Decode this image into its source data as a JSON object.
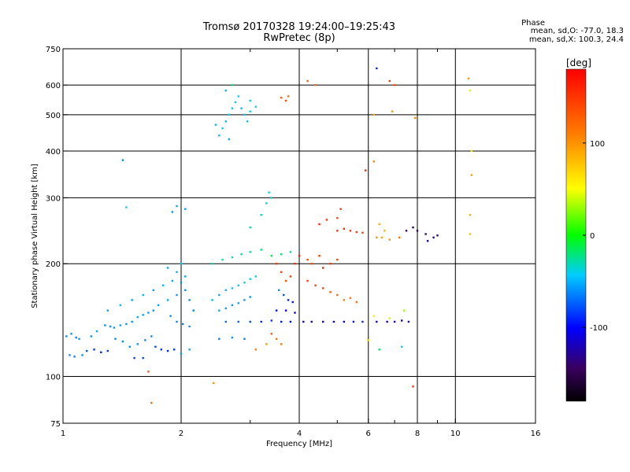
{
  "header": {
    "title_line1": "Tromsø 20170328 19:24:00–19:25:43",
    "title_line2": "RwPretec (8p)",
    "phase_title": "Phase",
    "phase_stat1": "mean, sd,O: -77.0, 18.3",
    "phase_stat2": "mean, sd,X: 100.3, 24.4"
  },
  "colorbar": {
    "unit_label": "[deg]",
    "range": [
      -180,
      180
    ],
    "ticks": [
      {
        "value": 100,
        "label": "100"
      },
      {
        "value": 0,
        "label": "0"
      },
      {
        "value": -100,
        "label": "-100"
      }
    ]
  },
  "chart_data": {
    "type": "scatter",
    "title": "Tromsø 20170328 19:24:00–19:25:43",
    "subtitle": "RwPretec (8p)",
    "xlabel": "Frequency [MHz]",
    "ylabel": "Stationary phase Virtual Height [km]",
    "xscale": "log",
    "yscale": "log",
    "xlim": [
      1,
      16
    ],
    "ylim": [
      75,
      750
    ],
    "grid": true,
    "xticks": [
      {
        "value": 1,
        "label": "1"
      },
      {
        "value": 2,
        "label": "2"
      },
      {
        "value": 4,
        "label": "4"
      },
      {
        "value": 6,
        "label": "6"
      },
      {
        "value": 8,
        "label": "8"
      },
      {
        "value": 10,
        "label": "10"
      },
      {
        "value": 16,
        "label": "16"
      }
    ],
    "xminor": [
      3,
      5,
      7,
      9
    ],
    "yticks": [
      {
        "value": 75,
        "label": "75"
      },
      {
        "value": 100,
        "label": "100"
      },
      {
        "value": 200,
        "label": "200"
      },
      {
        "value": 300,
        "label": "300"
      },
      {
        "value": 400,
        "label": "400"
      },
      {
        "value": 500,
        "label": "500"
      },
      {
        "value": 600,
        "label": "600"
      },
      {
        "value": 750,
        "label": "750"
      }
    ],
    "points": [
      [
        1.02,
        128,
        -60
      ],
      [
        1.05,
        130,
        -60
      ],
      [
        1.08,
        127,
        -65
      ],
      [
        1.1,
        126,
        -58
      ],
      [
        1.04,
        114,
        -62
      ],
      [
        1.07,
        113,
        -65
      ],
      [
        1.12,
        114,
        -60
      ],
      [
        1.15,
        117,
        -75
      ],
      [
        1.2,
        118,
        -85
      ],
      [
        1.25,
        116,
        -90
      ],
      [
        1.3,
        117,
        -85
      ],
      [
        1.18,
        128,
        -60
      ],
      [
        1.22,
        132,
        -55
      ],
      [
        1.28,
        137,
        -60
      ],
      [
        1.32,
        136,
        -62
      ],
      [
        1.35,
        135,
        -58
      ],
      [
        1.4,
        137,
        -55
      ],
      [
        1.45,
        138,
        -60
      ],
      [
        1.5,
        140,
        -60
      ],
      [
        1.55,
        144,
        -55
      ],
      [
        1.6,
        146,
        -55
      ],
      [
        1.65,
        148,
        -58
      ],
      [
        1.7,
        150,
        -60
      ],
      [
        1.36,
        126,
        -62
      ],
      [
        1.42,
        124,
        -65
      ],
      [
        1.48,
        120,
        -60
      ],
      [
        1.55,
        122,
        -58
      ],
      [
        1.62,
        125,
        -62
      ],
      [
        1.68,
        128,
        -60
      ],
      [
        1.72,
        120,
        -80
      ],
      [
        1.78,
        118,
        -85
      ],
      [
        1.85,
        117,
        -90
      ],
      [
        1.92,
        118,
        -85
      ],
      [
        1.3,
        150,
        -55
      ],
      [
        1.4,
        155,
        -50
      ],
      [
        1.5,
        160,
        -55
      ],
      [
        1.6,
        165,
        -52
      ],
      [
        1.7,
        170,
        -55
      ],
      [
        1.8,
        175,
        -50
      ],
      [
        1.9,
        180,
        -55
      ],
      [
        2.0,
        178,
        -60
      ],
      [
        1.75,
        155,
        -58
      ],
      [
        1.85,
        160,
        -55
      ],
      [
        1.95,
        165,
        -58
      ],
      [
        2.05,
        170,
        -60
      ],
      [
        2.1,
        160,
        -62
      ],
      [
        2.15,
        150,
        -65
      ],
      [
        1.88,
        145,
        -60
      ],
      [
        1.95,
        140,
        -62
      ],
      [
        2.02,
        138,
        -65
      ],
      [
        2.1,
        136,
        -60
      ],
      [
        1.9,
        275,
        -60
      ],
      [
        1.95,
        285,
        -55
      ],
      [
        2.05,
        280,
        -58
      ],
      [
        1.45,
        283,
        -45
      ],
      [
        1.42,
        378,
        -65
      ],
      [
        1.85,
        195,
        -55
      ],
      [
        1.95,
        190,
        -50
      ],
      [
        2.05,
        185,
        -55
      ],
      [
        2.0,
        200,
        -45
      ],
      [
        2.4,
        160,
        -50
      ],
      [
        2.5,
        165,
        -55
      ],
      [
        2.6,
        170,
        -50
      ],
      [
        2.7,
        172,
        -48
      ],
      [
        2.8,
        175,
        -45
      ],
      [
        2.9,
        178,
        -40
      ],
      [
        3.0,
        182,
        -42
      ],
      [
        3.1,
        185,
        -40
      ],
      [
        2.5,
        150,
        -55
      ],
      [
        2.6,
        152,
        -58
      ],
      [
        2.7,
        155,
        -60
      ],
      [
        2.8,
        157,
        -55
      ],
      [
        2.9,
        160,
        -58
      ],
      [
        3.0,
        163,
        -60
      ],
      [
        2.6,
        140,
        -70
      ],
      [
        2.8,
        140,
        -75
      ],
      [
        3.0,
        140,
        -80
      ],
      [
        3.2,
        140,
        -90
      ],
      [
        3.4,
        141,
        -85
      ],
      [
        3.6,
        140,
        -95
      ],
      [
        3.8,
        140,
        -100
      ],
      [
        2.5,
        126,
        -65
      ],
      [
        2.7,
        127,
        -60
      ],
      [
        2.9,
        126,
        -65
      ],
      [
        2.4,
        200,
        -30
      ],
      [
        2.55,
        205,
        -25
      ],
      [
        2.7,
        208,
        -30
      ],
      [
        2.85,
        212,
        -28
      ],
      [
        3.0,
        215,
        -25
      ],
      [
        3.2,
        218,
        -20
      ],
      [
        3.4,
        210,
        -15
      ],
      [
        3.6,
        212,
        -20
      ],
      [
        3.8,
        215,
        -25
      ],
      [
        3.0,
        250,
        -30
      ],
      [
        3.2,
        270,
        -35
      ],
      [
        3.3,
        290,
        -40
      ],
      [
        3.4,
        300,
        -38
      ],
      [
        3.35,
        310,
        -35
      ],
      [
        2.5,
        440,
        -50
      ],
      [
        2.55,
        460,
        -45
      ],
      [
        2.6,
        480,
        -50
      ],
      [
        2.65,
        500,
        -45
      ],
      [
        2.7,
        520,
        -48
      ],
      [
        2.75,
        540,
        -40
      ],
      [
        2.8,
        560,
        -45
      ],
      [
        2.85,
        520,
        -50
      ],
      [
        2.9,
        500,
        -45
      ],
      [
        2.95,
        480,
        -50
      ],
      [
        3.0,
        510,
        -45
      ],
      [
        2.6,
        580,
        -50
      ],
      [
        2.7,
        600,
        -20
      ],
      [
        3.0,
        545,
        -40
      ],
      [
        3.1,
        525,
        -45
      ],
      [
        2.45,
        470,
        -50
      ],
      [
        2.65,
        430,
        -55
      ],
      [
        3.6,
        555,
        130
      ],
      [
        3.7,
        545,
        140
      ],
      [
        3.75,
        560,
        120
      ],
      [
        3.5,
        200,
        150
      ],
      [
        3.6,
        190,
        145
      ],
      [
        3.7,
        180,
        140
      ],
      [
        3.8,
        185,
        150
      ],
      [
        3.9,
        200,
        155
      ],
      [
        4.0,
        210,
        160
      ],
      [
        3.55,
        170,
        -60
      ],
      [
        3.65,
        165,
        -80
      ],
      [
        3.75,
        160,
        -90
      ],
      [
        3.85,
        158,
        -95
      ],
      [
        3.5,
        150,
        -100
      ],
      [
        3.7,
        150,
        -110
      ],
      [
        3.9,
        148,
        -120
      ],
      [
        4.1,
        140,
        -120
      ],
      [
        4.3,
        140,
        -120
      ],
      [
        4.6,
        140,
        -115
      ],
      [
        4.9,
        140,
        -110
      ],
      [
        5.2,
        140,
        -100
      ],
      [
        5.5,
        140,
        -95
      ],
      [
        5.8,
        140,
        -90
      ],
      [
        4.2,
        205,
        145
      ],
      [
        4.3,
        200,
        140
      ],
      [
        4.5,
        210,
        150
      ],
      [
        4.6,
        195,
        160
      ],
      [
        4.8,
        200,
        150
      ],
      [
        5.0,
        205,
        145
      ],
      [
        4.2,
        180,
        150
      ],
      [
        4.4,
        175,
        145
      ],
      [
        4.6,
        172,
        140
      ],
      [
        4.8,
        168,
        130
      ],
      [
        5.0,
        165,
        120
      ],
      [
        5.2,
        160,
        110
      ],
      [
        5.4,
        162,
        115
      ],
      [
        5.6,
        158,
        120
      ],
      [
        5.0,
        245,
        150
      ],
      [
        5.2,
        248,
        155
      ],
      [
        5.4,
        245,
        150
      ],
      [
        5.6,
        243,
        150
      ],
      [
        5.8,
        242,
        145
      ],
      [
        4.5,
        255,
        160
      ],
      [
        4.7,
        262,
        150
      ],
      [
        6.3,
        235,
        100
      ],
      [
        6.5,
        235,
        95
      ],
      [
        6.8,
        232,
        100
      ],
      [
        7.2,
        235,
        120
      ],
      [
        6.3,
        140,
        -110
      ],
      [
        6.7,
        140,
        -115
      ],
      [
        7.0,
        140,
        -120
      ],
      [
        7.3,
        141,
        -120
      ],
      [
        7.6,
        140,
        -118
      ],
      [
        6.2,
        145,
        60
      ],
      [
        6.8,
        143,
        40
      ],
      [
        7.4,
        150,
        30
      ],
      [
        7.5,
        245,
        -140
      ],
      [
        7.8,
        250,
        -150
      ],
      [
        8.0,
        245,
        -150
      ],
      [
        8.4,
        240,
        -140
      ],
      [
        8.8,
        235,
        -130
      ],
      [
        9.0,
        238,
        -140
      ],
      [
        8.5,
        230,
        -120
      ],
      [
        6.3,
        665,
        -90
      ],
      [
        6.8,
        615,
        150
      ],
      [
        7.0,
        600,
        140
      ],
      [
        10.8,
        625,
        100
      ],
      [
        10.9,
        580,
        40
      ],
      [
        11.0,
        400,
        60
      ],
      [
        11.0,
        345,
        100
      ],
      [
        10.9,
        270,
        90
      ],
      [
        10.9,
        240,
        80
      ],
      [
        6.2,
        375,
        110
      ],
      [
        6.2,
        500,
        90
      ],
      [
        6.9,
        510,
        100
      ],
      [
        7.9,
        490,
        110
      ],
      [
        5.9,
        355,
        160
      ],
      [
        4.4,
        600,
        120
      ],
      [
        4.2,
        615,
        130
      ],
      [
        3.1,
        118,
        110
      ],
      [
        3.3,
        122,
        100
      ],
      [
        3.5,
        126,
        120
      ],
      [
        3.6,
        122,
        115
      ],
      [
        3.4,
        130,
        130
      ],
      [
        6.0,
        125,
        70
      ],
      [
        6.4,
        118,
        -20
      ],
      [
        7.3,
        120,
        -40
      ],
      [
        7.8,
        94,
        150
      ],
      [
        2.0,
        115,
        -60
      ],
      [
        2.1,
        118,
        -55
      ],
      [
        1.6,
        112,
        -80
      ],
      [
        1.52,
        112,
        -82
      ],
      [
        1.65,
        103,
        130
      ],
      [
        1.68,
        85,
        120
      ],
      [
        2.42,
        96,
        100
      ],
      [
        5.1,
        280,
        150
      ],
      [
        5.0,
        265,
        140
      ],
      [
        6.4,
        255,
        90
      ],
      [
        6.6,
        245,
        85
      ]
    ]
  }
}
